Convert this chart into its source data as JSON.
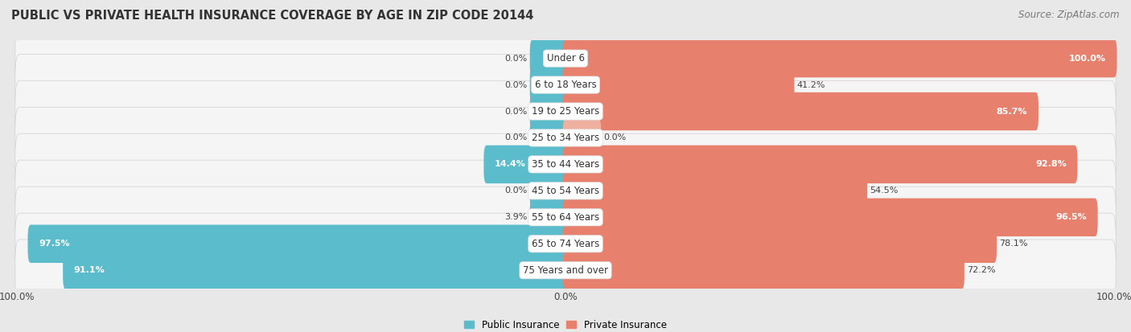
{
  "title": "PUBLIC VS PRIVATE HEALTH INSURANCE COVERAGE BY AGE IN ZIP CODE 20144",
  "source": "Source: ZipAtlas.com",
  "categories": [
    "Under 6",
    "6 to 18 Years",
    "19 to 25 Years",
    "25 to 34 Years",
    "35 to 44 Years",
    "45 to 54 Years",
    "55 to 64 Years",
    "65 to 74 Years",
    "75 Years and over"
  ],
  "public_values": [
    0.0,
    0.0,
    0.0,
    0.0,
    14.4,
    0.0,
    3.9,
    97.5,
    91.1
  ],
  "private_values": [
    100.0,
    41.2,
    85.7,
    0.0,
    92.8,
    54.5,
    96.5,
    78.1,
    72.2
  ],
  "public_color": "#5bbccc",
  "private_color": "#e8806e",
  "private_color_light": "#f0b0a0",
  "background_color": "#e8e8e8",
  "bar_background": "#f5f5f5",
  "card_edge_color": "#d0d0d0",
  "bar_min_stub": 6.0,
  "legend_public": "Public Insurance",
  "legend_private": "Private Insurance",
  "title_fontsize": 10.5,
  "label_fontsize": 8.5,
  "source_fontsize": 8.5,
  "axis_label_fontsize": 8.5,
  "value_label_fontsize": 8.0
}
